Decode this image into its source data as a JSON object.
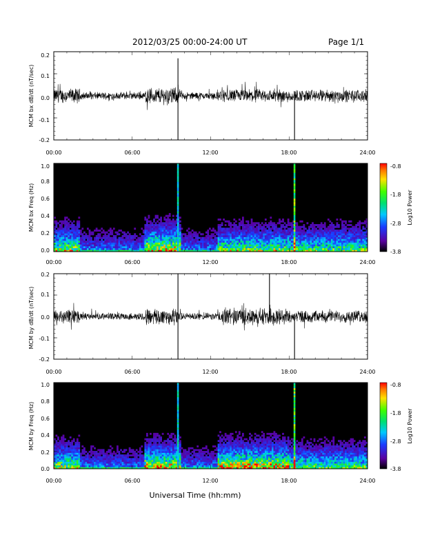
{
  "header": {
    "date_range": "2012/03/25  00:00-24:00 UT",
    "page": "Page 1/1"
  },
  "xlabel": "Universal Time (hh:mm)",
  "chart_data": [
    {
      "type": "line",
      "ylabel": "MCM bx dB/dt (nT/sec)",
      "x_ticks": [
        "00:00",
        "06:00",
        "12:00",
        "18:00",
        "24:00"
      ],
      "y_ticks": [
        "0.2",
        "0.1",
        "0.0",
        "-0.1",
        "-0.2"
      ],
      "xlim_hours": [
        0,
        24
      ],
      "ylim": [
        -0.2,
        0.2
      ],
      "spikes": [
        {
          "time": "09:30",
          "value": 0.17
        },
        {
          "time": "09:30",
          "value": -0.2
        },
        {
          "time": "18:25",
          "value": -0.2
        },
        {
          "time": "18:25",
          "value": 0.02
        }
      ]
    },
    {
      "type": "heatmap",
      "ylabel": "MCM bx Freq (Hz)",
      "x_ticks": [
        "00:00",
        "06:00",
        "12:00",
        "18:00",
        "24:00"
      ],
      "y_ticks": [
        "1.0",
        "0.8",
        "0.6",
        "0.4",
        "0.2",
        "0.0"
      ],
      "ylim": [
        0,
        1.0
      ],
      "colorbar": {
        "label": "Log10 Power",
        "ticks": [
          "-0.8",
          "-1.8",
          "-2.8",
          "-3.8"
        ],
        "range": [
          -3.8,
          -0.8
        ]
      }
    },
    {
      "type": "line",
      "ylabel": "MCM by dB/dt (nT/sec)",
      "x_ticks": [
        "00:00",
        "06:00",
        "12:00",
        "18:00",
        "24:00"
      ],
      "y_ticks": [
        "0.2",
        "0.1",
        "0.0",
        "-0.1",
        "-0.2"
      ],
      "xlim_hours": [
        0,
        24
      ],
      "ylim": [
        -0.2,
        0.2
      ],
      "spikes": [
        {
          "time": "09:30",
          "value": 0.2
        },
        {
          "time": "09:30",
          "value": -0.2
        },
        {
          "time": "18:25",
          "value": -0.2
        },
        {
          "time": "16:30",
          "value": 0.2
        }
      ]
    },
    {
      "type": "heatmap",
      "ylabel": "MCM by Freq (Hz)",
      "x_ticks": [
        "00:00",
        "06:00",
        "12:00",
        "18:00",
        "24:00"
      ],
      "y_ticks": [
        "1.0",
        "0.8",
        "0.6",
        "0.4",
        "0.2",
        "0.0"
      ],
      "ylim": [
        0,
        1.0
      ],
      "colorbar": {
        "label": "Log10 Power",
        "ticks": [
          "-0.8",
          "-1.8",
          "-2.8",
          "-3.8"
        ],
        "range": [
          -3.8,
          -0.8
        ]
      }
    }
  ]
}
